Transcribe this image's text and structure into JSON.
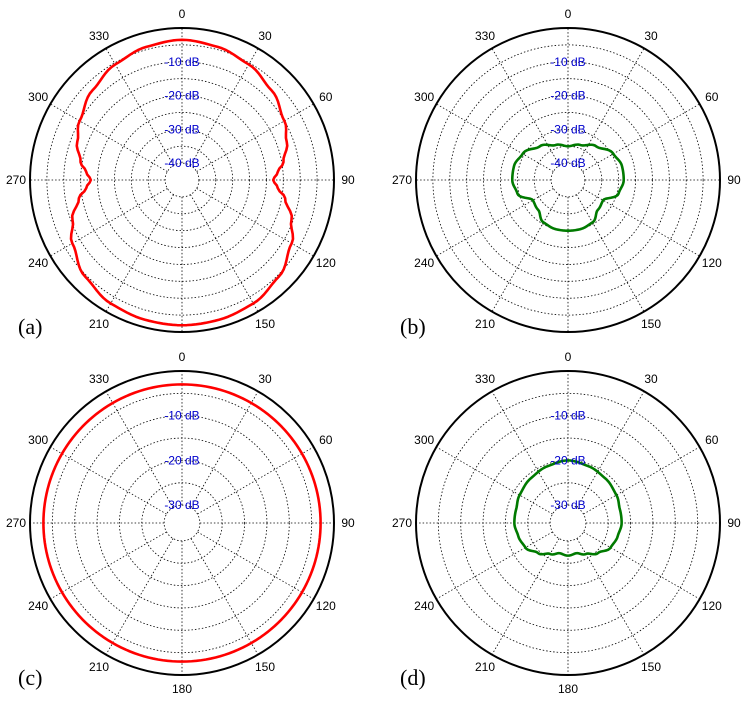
{
  "colors": {
    "red_trace": "#ff0000",
    "green_trace": "#007a00",
    "db_labels": "#0000cc",
    "grid": "#000000",
    "outer_circle": "#000000"
  },
  "chart_data": [
    {
      "panel_label": "(a)",
      "type": "polar-line",
      "angular_ticks": [
        "0",
        "30",
        "60",
        "90",
        "120",
        "150",
        "",
        "210",
        "240",
        "270",
        "300",
        "330"
      ],
      "radial_levels_db": [
        -40,
        -35,
        -30,
        -25,
        -20,
        -15,
        -10,
        -5,
        0
      ],
      "radial_labels": [
        {
          "text": "-10 dB",
          "db": -10
        },
        {
          "text": "-20 dB",
          "db": -20
        },
        {
          "text": "-30 dB",
          "db": -30
        },
        {
          "text": "-40 dB",
          "db": -40
        }
      ],
      "r_range_db": [
        -45,
        0
      ],
      "grid": true,
      "series": [
        {
          "color": "red",
          "angles_deg": [
            0,
            15,
            30,
            45,
            60,
            70,
            80,
            85,
            90,
            95,
            100,
            110,
            120,
            135,
            150,
            165,
            180,
            195,
            210,
            225,
            240,
            250,
            260,
            265,
            270,
            275,
            280,
            290,
            300,
            315,
            330,
            345,
            360
          ],
          "values_db": [
            -3.5,
            -4.2,
            -5.5,
            -7.5,
            -10,
            -12,
            -14.5,
            -16.5,
            -18,
            -16.5,
            -14,
            -10.5,
            -7.5,
            -4.5,
            -2.8,
            -2.2,
            -2,
            -2.2,
            -2.8,
            -4.5,
            -7.5,
            -10.5,
            -14,
            -16.5,
            -18,
            -16.5,
            -14.5,
            -12,
            -10,
            -7.5,
            -5.5,
            -4.2,
            -3.5
          ]
        }
      ]
    },
    {
      "panel_label": "(b)",
      "type": "polar-line",
      "angular_ticks": [
        "0",
        "30",
        "60",
        "90",
        "120",
        "150",
        "",
        "210",
        "240",
        "270",
        "300",
        "330"
      ],
      "radial_levels_db": [
        -40,
        -35,
        -30,
        -25,
        -20,
        -15,
        -10,
        -5,
        0
      ],
      "radial_labels": [
        {
          "text": "-10 dB",
          "db": -10
        },
        {
          "text": "-20 dB",
          "db": -20
        },
        {
          "text": "-30 dB",
          "db": -30
        },
        {
          "text": "-40 dB",
          "db": -40
        }
      ],
      "r_range_db": [
        -45,
        0
      ],
      "grid": true,
      "series": [
        {
          "color": "green",
          "angles_deg": [
            0,
            20,
            40,
            60,
            75,
            90,
            105,
            120,
            135,
            150,
            165,
            180,
            195,
            210,
            225,
            240,
            255,
            270,
            285,
            300,
            320,
            340,
            360
          ],
          "values_db": [
            -35,
            -34,
            -32,
            -29.5,
            -28.5,
            -28.5,
            -29.5,
            -33,
            -32.5,
            -30.5,
            -30,
            -30,
            -30,
            -30.5,
            -32.5,
            -33,
            -29.5,
            -28.5,
            -28.5,
            -29.5,
            -32,
            -34,
            -35
          ]
        }
      ]
    },
    {
      "panel_label": "(c)",
      "type": "polar-line",
      "angular_ticks": [
        "0",
        "30",
        "60",
        "90",
        "120",
        "150",
        "180",
        "210",
        "240",
        "270",
        "300",
        "330"
      ],
      "radial_levels_db": [
        -30,
        -25,
        -20,
        -15,
        -10,
        -5,
        0
      ],
      "radial_labels": [
        {
          "text": "-10 dB",
          "db": -10
        },
        {
          "text": "-20 dB",
          "db": -20
        },
        {
          "text": "-30 dB",
          "db": -30
        }
      ],
      "r_range_db": [
        -34,
        0
      ],
      "grid": true,
      "series": [
        {
          "color": "red",
          "angles_deg": [
            0,
            30,
            60,
            90,
            120,
            150,
            180,
            210,
            240,
            270,
            300,
            330,
            360
          ],
          "values_db": [
            -3,
            -3,
            -3,
            -3,
            -3,
            -3,
            -3,
            -3,
            -3,
            -3,
            -3,
            -3,
            -3
          ]
        }
      ]
    },
    {
      "panel_label": "(d)",
      "type": "polar-line",
      "angular_ticks": [
        "0",
        "30",
        "60",
        "90",
        "120",
        "150",
        "180",
        "210",
        "240",
        "270",
        "300",
        "330"
      ],
      "radial_levels_db": [
        -30,
        -25,
        -20,
        -15,
        -10,
        -5,
        0
      ],
      "radial_labels": [
        {
          "text": "-10 dB",
          "db": -10
        },
        {
          "text": "-20 dB",
          "db": -20
        },
        {
          "text": "-30 dB",
          "db": -30
        }
      ],
      "r_range_db": [
        -34,
        0
      ],
      "grid": true,
      "series": [
        {
          "color": "green",
          "angles_deg": [
            0,
            20,
            40,
            60,
            75,
            90,
            105,
            120,
            135,
            150,
            165,
            180,
            195,
            210,
            225,
            240,
            255,
            270,
            285,
            300,
            320,
            340,
            360
          ],
          "values_db": [
            -20,
            -20.5,
            -21,
            -21.5,
            -22,
            -22,
            -22.5,
            -23,
            -24.5,
            -26,
            -27,
            -26.7,
            -27,
            -26,
            -24.5,
            -23,
            -22.5,
            -22,
            -22,
            -21.5,
            -21,
            -20.5,
            -20
          ]
        }
      ]
    }
  ]
}
